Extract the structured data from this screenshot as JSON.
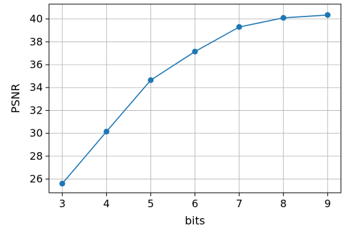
{
  "chart_data": {
    "type": "line",
    "title": "",
    "xlabel": "bits",
    "ylabel": "PSNR",
    "x": [
      3,
      4,
      5,
      6,
      7,
      8,
      9
    ],
    "series": [
      {
        "values": [
          25.6,
          30.15,
          34.65,
          37.15,
          39.3,
          40.1,
          40.35
        ],
        "color": "#1f77b4",
        "marker": "circle"
      }
    ],
    "xlim": [
      2.7,
      9.3
    ],
    "ylim": [
      24.8,
      41.3
    ],
    "xticks": [
      "3",
      "4",
      "5",
      "6",
      "7",
      "8",
      "9"
    ],
    "yticks": [
      "26",
      "28",
      "30",
      "32",
      "34",
      "36",
      "38",
      "40"
    ],
    "grid": true,
    "legend": "none"
  }
}
